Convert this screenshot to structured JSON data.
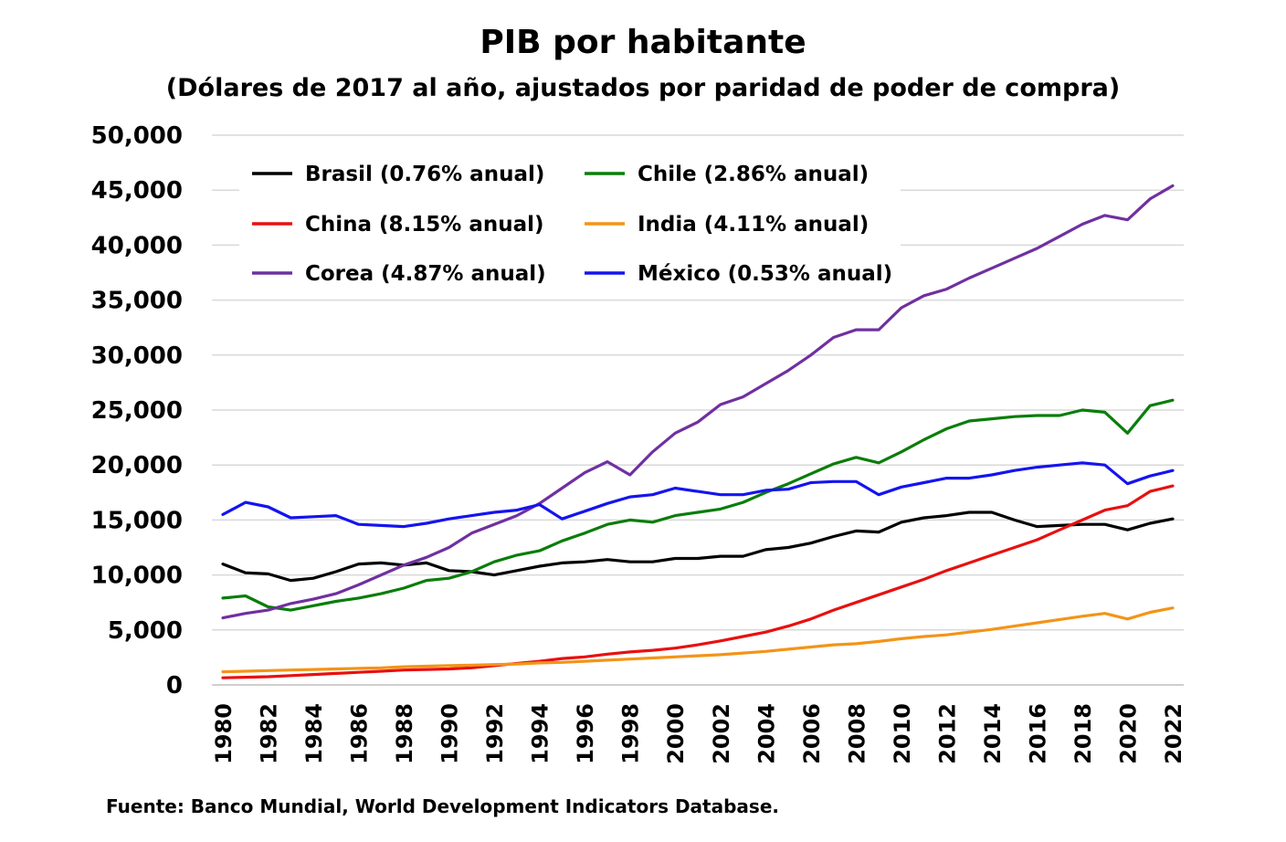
{
  "chart_data": {
    "type": "line",
    "title": "PIB por habitante",
    "subtitle": "(Dólares de 2017 al año, ajustados por paridad de poder de compra)",
    "source": "Fuente: Banco Mundial, World Development Indicators Database.",
    "xlabel": "",
    "ylabel": "",
    "ylim": [
      0,
      50000
    ],
    "yticks": [
      0,
      5000,
      10000,
      15000,
      20000,
      25000,
      30000,
      35000,
      40000,
      45000,
      50000
    ],
    "ytick_labels": [
      "0",
      "5,000",
      "10,000",
      "15,000",
      "20,000",
      "25,000",
      "30,000",
      "35,000",
      "40,000",
      "45,000",
      "50,000"
    ],
    "x": [
      1980,
      1981,
      1982,
      1983,
      1984,
      1985,
      1986,
      1987,
      1988,
      1989,
      1990,
      1991,
      1992,
      1993,
      1994,
      1995,
      1996,
      1997,
      1998,
      1999,
      2000,
      2001,
      2002,
      2003,
      2004,
      2005,
      2006,
      2007,
      2008,
      2009,
      2010,
      2011,
      2012,
      2013,
      2014,
      2015,
      2016,
      2017,
      2018,
      2019,
      2020,
      2021,
      2022
    ],
    "xticks": [
      "1980",
      "1982",
      "1984",
      "1986",
      "1988",
      "1990",
      "1992",
      "1994",
      "1996",
      "1998",
      "2000",
      "2002",
      "2004",
      "2006",
      "2008",
      "2010",
      "2012",
      "2014",
      "2016",
      "2018",
      "2020",
      "2022"
    ],
    "grid": true,
    "legend_position": "top-left",
    "series": [
      {
        "name": "Brasil (0.76% anual)",
        "color": "#000000",
        "values": [
          11000,
          10200,
          10100,
          9500,
          9700,
          10300,
          11000,
          11100,
          10900,
          11100,
          10400,
          10300,
          10000,
          10400,
          10800,
          11100,
          11200,
          11400,
          11200,
          11200,
          11500,
          11500,
          11700,
          11700,
          12300,
          12500,
          12900,
          13500,
          14000,
          13900,
          14800,
          15200,
          15400,
          15700,
          15700,
          15000,
          14400,
          14500,
          14600,
          14600,
          14100,
          14700,
          15100
        ]
      },
      {
        "name": "Chile (2.86% anual)",
        "color": "#0a7d0a",
        "values": [
          7900,
          8100,
          7100,
          6800,
          7200,
          7600,
          7900,
          8300,
          8800,
          9500,
          9700,
          10300,
          11200,
          11800,
          12200,
          13100,
          13800,
          14600,
          15000,
          14800,
          15400,
          15700,
          16000,
          16600,
          17500,
          18300,
          19200,
          20100,
          20700,
          20200,
          21200,
          22300,
          23300,
          24000,
          24200,
          24400,
          24500,
          24500,
          25000,
          24800,
          22900,
          25400,
          25900
        ]
      },
      {
        "name": "China (8.15% anual)",
        "color": "#e81010",
        "values": [
          650,
          700,
          750,
          850,
          950,
          1050,
          1150,
          1250,
          1350,
          1400,
          1450,
          1550,
          1750,
          1950,
          2150,
          2400,
          2550,
          2800,
          3000,
          3150,
          3350,
          3650,
          4000,
          4400,
          4800,
          5350,
          6000,
          6800,
          7500,
          8200,
          8900,
          9600,
          10400,
          11100,
          11800,
          12500,
          13200,
          14100,
          15000,
          15900,
          16300,
          17600,
          18100
        ]
      },
      {
        "name": "India (4.11% anual)",
        "color": "#f39417",
        "values": [
          1200,
          1250,
          1300,
          1350,
          1400,
          1450,
          1500,
          1550,
          1650,
          1700,
          1750,
          1800,
          1850,
          1900,
          2000,
          2050,
          2150,
          2250,
          2350,
          2450,
          2550,
          2650,
          2750,
          2900,
          3050,
          3250,
          3450,
          3650,
          3750,
          3950,
          4200,
          4400,
          4550,
          4800,
          5050,
          5350,
          5650,
          5950,
          6250,
          6500,
          6000,
          6600,
          7000
        ]
      },
      {
        "name": "Corea (4.87% anual)",
        "color": "#7030a0",
        "values": [
          6100,
          6500,
          6800,
          7400,
          7800,
          8300,
          9100,
          10000,
          10900,
          11600,
          12500,
          13800,
          14600,
          15400,
          16500,
          17900,
          19300,
          20300,
          19100,
          21200,
          22900,
          23900,
          25500,
          26200,
          27400,
          28600,
          30000,
          31600,
          32300,
          32300,
          34300,
          35400,
          36000,
          37000,
          37900,
          38800,
          39700,
          40800,
          41900,
          42700,
          42300,
          44200,
          45400
        ]
      },
      {
        "name": "México (0.53% anual)",
        "color": "#1414f0",
        "values": [
          15500,
          16600,
          16200,
          15200,
          15300,
          15400,
          14600,
          14500,
          14400,
          14700,
          15100,
          15400,
          15700,
          15900,
          16400,
          15100,
          15800,
          16500,
          17100,
          17300,
          17900,
          17600,
          17300,
          17300,
          17700,
          17800,
          18400,
          18500,
          18500,
          17300,
          18000,
          18400,
          18800,
          18800,
          19100,
          19500,
          19800,
          20000,
          20200,
          20000,
          18300,
          19000,
          19500
        ]
      }
    ]
  }
}
